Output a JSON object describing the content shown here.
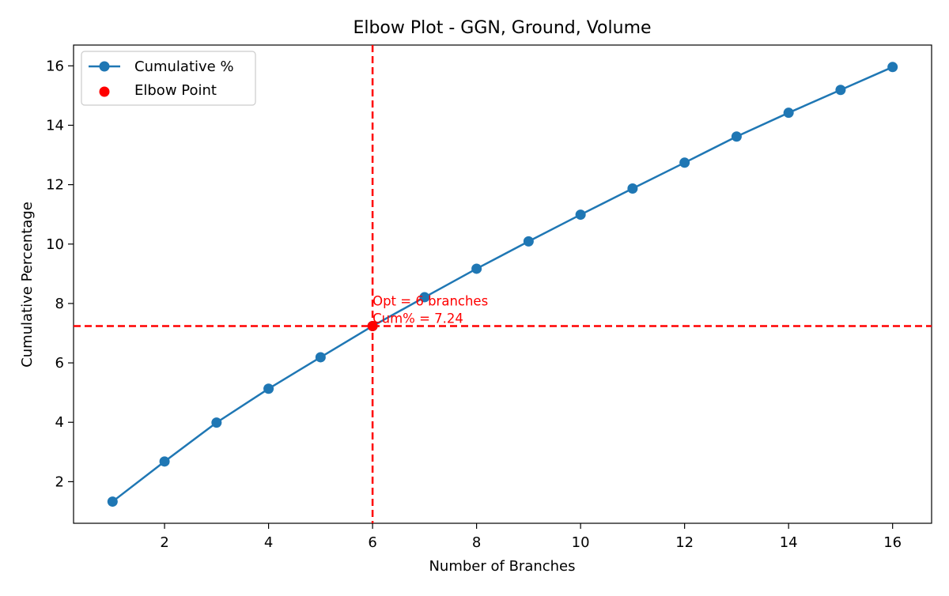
{
  "colors": {
    "series": "#1f77b4",
    "elbow": "#ff0000",
    "axis": "#000000",
    "background": "#ffffff"
  },
  "chart_data": {
    "type": "line",
    "title": "Elbow Plot - GGN, Ground, Volume",
    "xlabel": "Number of Branches",
    "ylabel": "Cumulative Percentage",
    "xlim": [
      0.25,
      16.75
    ],
    "ylim": [
      0.6,
      16.7
    ],
    "xticks": [
      2,
      4,
      6,
      8,
      10,
      12,
      14,
      16
    ],
    "yticks": [
      2,
      4,
      6,
      8,
      10,
      12,
      14,
      16
    ],
    "grid": false,
    "legend_position": "top-left",
    "series": [
      {
        "name": "Cumulative %",
        "marker": "circle",
        "x": [
          1,
          2,
          3,
          4,
          5,
          6,
          7,
          8,
          9,
          10,
          11,
          12,
          13,
          14,
          15,
          16
        ],
        "y": [
          1.33,
          2.68,
          3.99,
          5.13,
          6.19,
          7.24,
          8.21,
          9.17,
          10.09,
          10.99,
          11.87,
          12.74,
          13.62,
          14.42,
          15.19,
          15.96
        ]
      }
    ],
    "elbow": {
      "name": "Elbow Point",
      "x": 6,
      "y": 7.24,
      "annotation_lines": [
        "Opt = 6 branches",
        "Cum% = 7.24"
      ]
    }
  }
}
